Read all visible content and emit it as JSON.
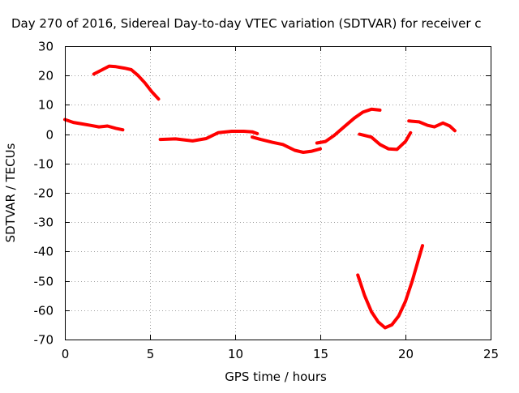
{
  "chart_data": {
    "type": "line",
    "title": "Day 270 of 2016, Sidereal Day-to-day VTEC variation (SDTVAR) for receiver c",
    "xlabel": "GPS time / hours",
    "ylabel": "SDTVAR / TECUs",
    "xlim": [
      0,
      25
    ],
    "ylim": [
      -70,
      30
    ],
    "xticks": [
      "0",
      "5",
      "10",
      "15",
      "20",
      "25"
    ],
    "yticks": [
      "30",
      "20",
      "10",
      "0",
      "-10",
      "-20",
      "-30",
      "-40",
      "-50",
      "-60",
      "-70"
    ],
    "grid": true,
    "colors": {
      "series": "#ff0000"
    },
    "series": [
      {
        "points": [
          [
            0.0,
            5.0
          ],
          [
            0.5,
            4.0
          ],
          [
            1.0,
            3.5
          ],
          [
            1.5,
            3.0
          ],
          [
            2.0,
            2.5
          ],
          [
            2.5,
            2.8
          ],
          [
            3.0,
            2.0
          ],
          [
            3.4,
            1.5
          ]
        ]
      },
      {
        "points": [
          [
            1.7,
            20.5
          ],
          [
            2.2,
            22.0
          ],
          [
            2.6,
            23.2
          ],
          [
            3.0,
            23.0
          ],
          [
            3.5,
            22.5
          ],
          [
            3.9,
            22.0
          ],
          [
            4.3,
            20.0
          ],
          [
            4.7,
            17.5
          ],
          [
            5.1,
            14.5
          ],
          [
            5.5,
            12.0
          ]
        ]
      },
      {
        "points": [
          [
            5.6,
            -1.8
          ],
          [
            6.5,
            -1.6
          ],
          [
            7.5,
            -2.3
          ],
          [
            8.3,
            -1.5
          ],
          [
            9.0,
            0.5
          ],
          [
            9.8,
            1.0
          ],
          [
            10.5,
            1.0
          ],
          [
            11.0,
            0.8
          ],
          [
            11.3,
            0.2
          ]
        ]
      },
      {
        "points": [
          [
            11.0,
            -1.0
          ],
          [
            11.5,
            -1.8
          ],
          [
            12.2,
            -2.8
          ],
          [
            12.8,
            -3.5
          ],
          [
            13.5,
            -5.5
          ],
          [
            14.0,
            -6.2
          ],
          [
            14.5,
            -5.8
          ],
          [
            15.0,
            -5.0
          ]
        ]
      },
      {
        "points": [
          [
            14.8,
            -3.0
          ],
          [
            15.3,
            -2.5
          ],
          [
            15.8,
            -0.5
          ],
          [
            16.5,
            3.0
          ],
          [
            17.0,
            5.5
          ],
          [
            17.5,
            7.5
          ],
          [
            18.0,
            8.5
          ],
          [
            18.5,
            8.2
          ]
        ]
      },
      {
        "points": [
          [
            17.3,
            0.0
          ],
          [
            18.0,
            -1.0
          ],
          [
            18.5,
            -3.5
          ],
          [
            19.0,
            -5.0
          ],
          [
            19.5,
            -5.2
          ],
          [
            20.0,
            -2.5
          ],
          [
            20.3,
            0.5
          ]
        ]
      },
      {
        "points": [
          [
            20.2,
            4.5
          ],
          [
            20.8,
            4.2
          ],
          [
            21.3,
            3.0
          ],
          [
            21.7,
            2.5
          ],
          [
            22.2,
            3.8
          ],
          [
            22.6,
            2.8
          ],
          [
            22.9,
            1.2
          ]
        ]
      },
      {
        "points": [
          [
            17.2,
            -48.0
          ],
          [
            17.6,
            -55.0
          ],
          [
            18.0,
            -60.5
          ],
          [
            18.4,
            -64.0
          ],
          [
            18.8,
            -66.0
          ],
          [
            19.2,
            -65.0
          ],
          [
            19.6,
            -62.0
          ],
          [
            20.0,
            -57.0
          ],
          [
            20.4,
            -50.0
          ],
          [
            20.8,
            -42.0
          ],
          [
            21.0,
            -38.0
          ]
        ]
      }
    ]
  }
}
